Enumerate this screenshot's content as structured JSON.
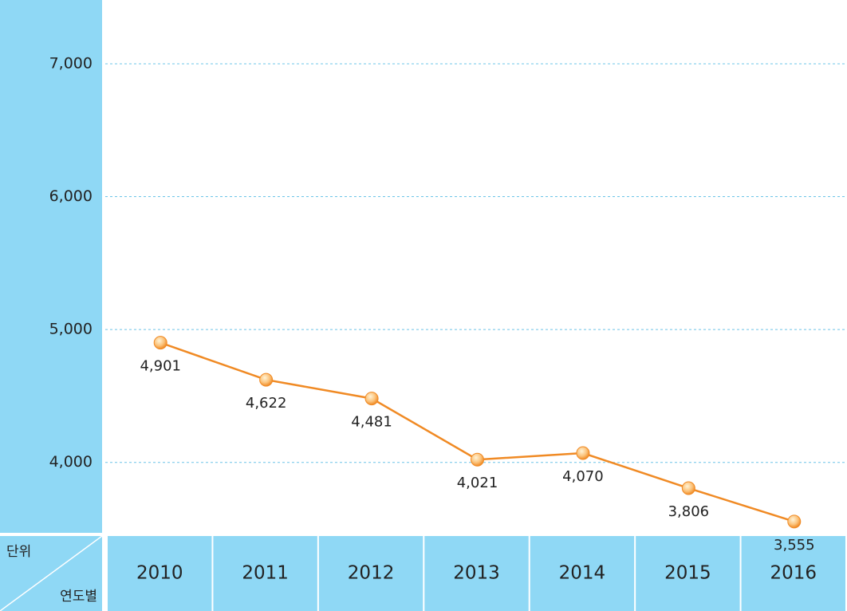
{
  "chart_data": {
    "type": "line",
    "corner_top": "단위",
    "corner_bottom": "연도별",
    "categories": [
      "2010",
      "2011",
      "2012",
      "2013",
      "2014",
      "2015",
      "2016"
    ],
    "series": [
      {
        "color": "#f08a24",
        "values": [
          4901,
          4622,
          4481,
          4021,
          4070,
          3806,
          3555
        ],
        "value_labels": [
          "4,901",
          "4,622",
          "4,481",
          "4,021",
          "4,070",
          "3,806",
          "3,555"
        ]
      }
    ],
    "ylim": [
      3470,
      7480
    ],
    "yticks": [
      {
        "value": 4000,
        "label": "4,000"
      },
      {
        "value": 5000,
        "label": "5,000"
      },
      {
        "value": 6000,
        "label": "6,000"
      },
      {
        "value": 7000,
        "label": "7,000"
      }
    ],
    "grid": true
  }
}
